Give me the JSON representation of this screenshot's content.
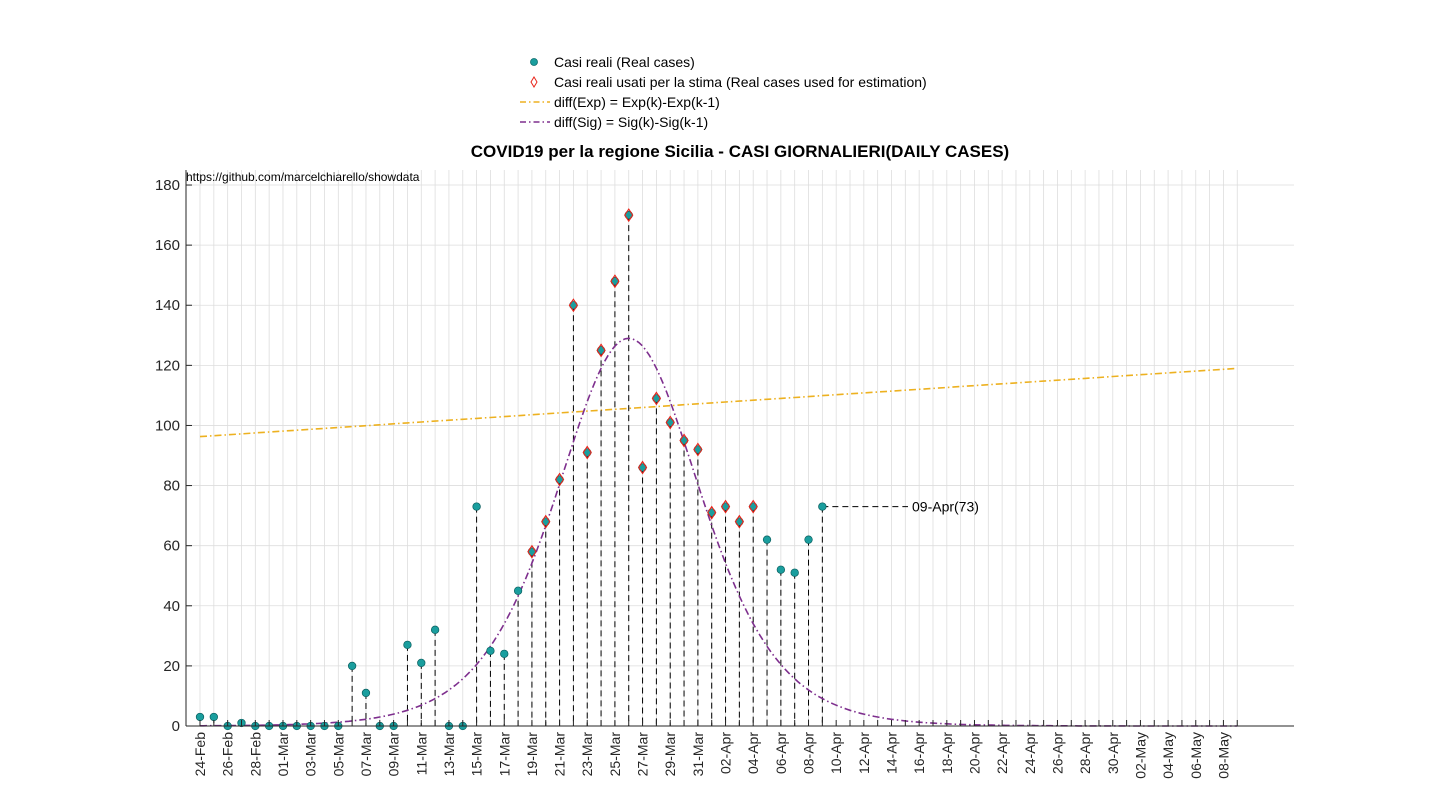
{
  "chart_data": {
    "type": "line",
    "title": "COVID19 per la regione Sicilia - CASI GIORNALIERI(DAILY CASES)",
    "source_text": "https://github.com/marcelchiarello/showdata",
    "xlabel": "",
    "ylabel": "",
    "ylim": [
      0,
      185
    ],
    "yticks": [
      0,
      20,
      40,
      60,
      80,
      100,
      120,
      140,
      160,
      180
    ],
    "x_dates": [
      "24-Feb",
      "25-Feb",
      "26-Feb",
      "27-Feb",
      "28-Feb",
      "29-Feb",
      "01-Mar",
      "02-Mar",
      "03-Mar",
      "04-Mar",
      "05-Mar",
      "06-Mar",
      "07-Mar",
      "08-Mar",
      "09-Mar",
      "10-Mar",
      "11-Mar",
      "12-Mar",
      "13-Mar",
      "14-Mar",
      "15-Mar",
      "16-Mar",
      "17-Mar",
      "18-Mar",
      "19-Mar",
      "20-Mar",
      "21-Mar",
      "22-Mar",
      "23-Mar",
      "24-Mar",
      "25-Mar",
      "26-Mar",
      "27-Mar",
      "28-Mar",
      "29-Mar",
      "30-Mar",
      "31-Mar",
      "01-Apr",
      "02-Apr",
      "03-Apr",
      "04-Apr",
      "05-Apr",
      "06-Apr",
      "07-Apr",
      "08-Apr",
      "09-Apr",
      "10-Apr",
      "11-Apr",
      "12-Apr",
      "13-Apr",
      "14-Apr",
      "15-Apr",
      "16-Apr",
      "17-Apr",
      "18-Apr",
      "19-Apr",
      "20-Apr",
      "21-Apr",
      "22-Apr",
      "23-Apr",
      "24-Apr",
      "25-Apr",
      "26-Apr",
      "27-Apr",
      "28-Apr",
      "29-Apr",
      "30-Apr",
      "01-May",
      "02-May",
      "03-May",
      "04-May",
      "05-May",
      "06-May",
      "07-May",
      "08-May",
      "09-May"
    ],
    "xtick_labels": [
      "24-Feb",
      "26-Feb",
      "28-Feb",
      "01-Mar",
      "03-Mar",
      "05-Mar",
      "07-Mar",
      "09-Mar",
      "11-Mar",
      "13-Mar",
      "15-Mar",
      "17-Mar",
      "19-Mar",
      "21-Mar",
      "23-Mar",
      "25-Mar",
      "27-Mar",
      "29-Mar",
      "31-Mar",
      "02-Apr",
      "04-Apr",
      "06-Apr",
      "08-Apr",
      "10-Apr",
      "12-Apr",
      "14-Apr",
      "16-Apr",
      "18-Apr",
      "20-Apr",
      "22-Apr",
      "24-Apr",
      "26-Apr",
      "28-Apr",
      "30-Apr",
      "02-May",
      "04-May",
      "06-May",
      "08-May"
    ],
    "series": [
      {
        "name": "Casi reali (Real cases)",
        "marker": "circle",
        "color": "#1a9e9e",
        "values": [
          3,
          3,
          0,
          1,
          0,
          0,
          0,
          0,
          0,
          0,
          0,
          20,
          11,
          0,
          0,
          27,
          21,
          32,
          0,
          0,
          73,
          25,
          24,
          45,
          58,
          68,
          82,
          140,
          91,
          125,
          148,
          170,
          86,
          109,
          101,
          95,
          92,
          71,
          73,
          68,
          73,
          62,
          52,
          51,
          62,
          73
        ]
      },
      {
        "name": "Casi reali usati per la stima (Real cases used for estimation)",
        "marker": "diamond",
        "color": "#e8241a",
        "start_date": "19-Mar",
        "values": [
          58,
          68,
          82,
          140,
          91,
          125,
          148,
          170,
          86,
          109,
          101,
          95,
          92,
          71,
          73,
          68,
          73
        ]
      },
      {
        "name": "diff(Exp) = Exp(k)-Exp(k-1)",
        "style": "dash-dot",
        "color": "#edb120",
        "start_value": 96.3,
        "end_value": 119.0
      },
      {
        "name": "diff(Sig) = Sig(k)-Sig(k-1)",
        "style": "dash-dot",
        "color": "#7e2f8e",
        "peak_value": 129,
        "peak_date": "26-Mar",
        "width_days": 3.5
      }
    ],
    "annotation": {
      "date": "09-Apr",
      "value": 73,
      "text": "09-Apr(73)"
    },
    "legend_position": "top-center",
    "grid": true,
    "colors": {
      "dash_lines": "#000000",
      "grid": "#dddddd"
    }
  }
}
